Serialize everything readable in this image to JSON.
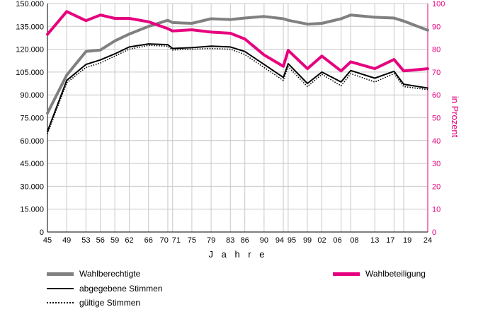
{
  "chart_data": {
    "type": "line",
    "xlabel": "J a h r e",
    "y2label": "in Prozent",
    "x": [
      1945,
      1949,
      1953,
      1956,
      1959,
      1962,
      1966,
      1970,
      1971,
      1975,
      1979,
      1983,
      1986,
      1990,
      1994,
      1995,
      1999,
      2002,
      2006,
      2008,
      2013,
      2017,
      2019,
      2024
    ],
    "x_tick_labels": [
      "45",
      "49",
      "53",
      "56",
      "59",
      "62",
      "66",
      "70",
      "71",
      "75",
      "79",
      "83",
      "86",
      "90",
      "94",
      "95",
      "99",
      "02",
      "06",
      "08",
      "13",
      "17",
      "19",
      "24"
    ],
    "ylim": [
      0,
      150000
    ],
    "y_ticks": [
      "0",
      "15.000",
      "30.000",
      "45.000",
      "60.000",
      "75.000",
      "90.000",
      "105.000",
      "120.000",
      "135.000",
      "150.000"
    ],
    "y2lim": [
      0,
      100
    ],
    "y2_ticks": [
      "0",
      "10",
      "20",
      "30",
      "40",
      "50",
      "60",
      "70",
      "80",
      "90",
      "100"
    ],
    "grid": true,
    "legend_position": "bottom",
    "series": [
      {
        "name": "Wahlberechtigte",
        "axis": "left",
        "color": "#808080",
        "style": "thick",
        "values": [
          78000,
          103000,
          118500,
          119500,
          125500,
          130000,
          135000,
          139000,
          137500,
          137000,
          140000,
          139500,
          140500,
          141500,
          140000,
          139000,
          136500,
          137000,
          140000,
          142500,
          141000,
          140500,
          138500,
          132500
        ]
      },
      {
        "name": "abgegebene Stimmen",
        "axis": "left",
        "color": "#000000",
        "style": "solid",
        "values": [
          66000,
          99500,
          110000,
          113000,
          117000,
          121500,
          123500,
          123000,
          120500,
          121000,
          122000,
          121500,
          118500,
          110000,
          101500,
          110500,
          97500,
          105000,
          98500,
          106000,
          101000,
          105500,
          97000,
          94500
        ]
      },
      {
        "name": "gültige Stimmen",
        "axis": "left",
        "color": "#000000",
        "style": "dotted",
        "values": [
          64500,
          98000,
          108000,
          111000,
          115500,
          120000,
          122500,
          122000,
          119500,
          120000,
          120500,
          120000,
          116500,
          108000,
          99500,
          108500,
          95500,
          103500,
          96000,
          104000,
          98500,
          104000,
          95500,
          93500
        ]
      },
      {
        "name": "Wahlbeteiligung",
        "axis": "right",
        "color": "#e6007e",
        "style": "thick",
        "values": [
          86.5,
          96.5,
          92.5,
          95,
          93.5,
          93.5,
          92,
          89,
          88,
          88.5,
          87.5,
          87,
          84.5,
          77.5,
          72.5,
          79.5,
          71.5,
          77,
          70.5,
          74.5,
          71.5,
          75.5,
          70.5,
          71.5
        ]
      }
    ]
  }
}
